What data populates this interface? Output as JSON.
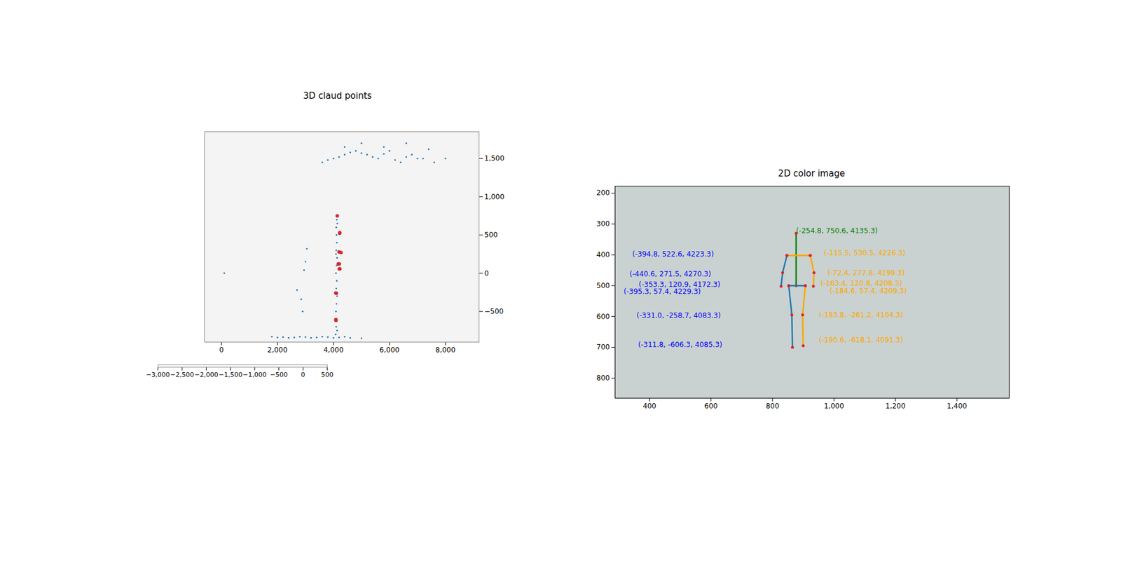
{
  "chart_data": [
    {
      "type": "scatter3d",
      "title": "3D claud points",
      "grid": true,
      "xlim": [
        -600,
        9200
      ],
      "xticks": [
        0,
        2000,
        4000,
        6000,
        8000
      ],
      "ylim": [
        -900,
        1850
      ],
      "yticks": [
        -500,
        0,
        500,
        1000,
        1500
      ],
      "x2lim": [
        -3000,
        500
      ],
      "x2ticks": [
        -3000,
        -2500,
        -2000,
        -1500,
        -1000,
        -500,
        0,
        500
      ],
      "series": [
        {
          "color": "#1f77b4",
          "marker": "point",
          "x": [
            4080,
            4100,
            4120,
            4090,
            4110,
            4130,
            4100,
            4120,
            4090,
            4110,
            4130,
            4100,
            4120,
            4110,
            4100,
            4120,
            4130,
            4110,
            4090,
            4140,
            1800,
            2000,
            2200,
            2400,
            2600,
            2800,
            3000,
            3200,
            3400,
            3600,
            3800,
            4000,
            4200,
            4400,
            4600,
            5000,
            3600,
            3800,
            4000,
            4200,
            4400,
            4600,
            4800,
            5000,
            5200,
            5400,
            5600,
            5800,
            6000,
            6200,
            6400,
            6600,
            6800,
            7000,
            7200,
            7600,
            8000,
            4400,
            5000,
            5800,
            6600,
            7400,
            3050,
            3000,
            2950,
            2850,
            2700,
            2900,
            100
          ],
          "values": [
            -800,
            -700,
            -600,
            -500,
            -400,
            -300,
            -200,
            -100,
            0,
            100,
            200,
            300,
            400,
            500,
            600,
            700,
            -750,
            -250,
            250,
            650,
            -830,
            -840,
            -835,
            -845,
            -840,
            -830,
            -835,
            -845,
            -840,
            -830,
            -835,
            -845,
            -840,
            -830,
            -845,
            -850,
            1450,
            1480,
            1500,
            1520,
            1550,
            1580,
            1600,
            1570,
            1550,
            1520,
            1500,
            1560,
            1600,
            1480,
            1450,
            1520,
            1550,
            1500,
            1500,
            1450,
            1500,
            1650,
            1700,
            1650,
            1700,
            1620,
            320,
            150,
            40,
            -340,
            -220,
            -500,
            0
          ]
        },
        {
          "color": "#d62728",
          "marker": "circle",
          "x": [
            4135.3,
            4223.3,
            4270.3,
            4172.3,
            4229.3,
            4083.3,
            4085.3,
            4226.3,
            4199.3,
            4208.3,
            4209.3,
            4104.3,
            4091.3
          ],
          "values": [
            750.6,
            522.6,
            271.5,
            120.9,
            57.4,
            -258.7,
            -606.3,
            530.5,
            277.8,
            120.8,
            57.4,
            -261.2,
            -618.1
          ]
        }
      ]
    },
    {
      "type": "image",
      "title": "2D color image",
      "grid": false,
      "xlim": [
        288,
        1570
      ],
      "xticks": [
        400,
        600,
        800,
        1000,
        1200,
        1400
      ],
      "ylim": [
        865,
        177
      ],
      "yticks": [
        200,
        300,
        400,
        500,
        600,
        700,
        800
      ],
      "series": [
        {
          "color": "green",
          "x": [
            877,
            877
          ],
          "values": [
            330,
            500
          ]
        },
        {
          "color": "orange",
          "x": [
            847,
            923
          ],
          "values": [
            402,
            402
          ]
        },
        {
          "color": "orange",
          "x": [
            923,
            935,
            933
          ],
          "values": [
            402,
            458,
            502
          ]
        },
        {
          "color": "orange",
          "x": [
            907,
            898,
            900
          ],
          "values": [
            500,
            595,
            695
          ]
        },
        {
          "color": "#1f77b4",
          "x": [
            847,
            833,
            828
          ],
          "values": [
            402,
            458,
            502
          ]
        },
        {
          "color": "#1f77b4",
          "x": [
            853,
            863,
            865
          ],
          "values": [
            500,
            595,
            700
          ]
        },
        {
          "color": "#1f77b4",
          "x": [
            853,
            907
          ],
          "values": [
            500,
            500
          ]
        }
      ],
      "annotations": [
        {
          "text": "(-254.8, 750.6, 4135.3)",
          "x": 877,
          "y": 323,
          "color": "green"
        },
        {
          "text": "(-394.8, 522.6, 4223.3)",
          "x": 344,
          "y": 398,
          "color": "blue"
        },
        {
          "text": "(-440.6, 271.5, 4270.3)",
          "x": 335,
          "y": 463,
          "color": "blue"
        },
        {
          "text": "(-353.3, 120.9, 4172.3)",
          "x": 365,
          "y": 497,
          "color": "blue"
        },
        {
          "text": "(-395.3, 57.4, 4229.3)",
          "x": 316,
          "y": 520,
          "color": "blue"
        },
        {
          "text": "(-331.0, -258.7, 4083.3)",
          "x": 358,
          "y": 598,
          "color": "blue"
        },
        {
          "text": "(-311.8, -606.3, 4085.3)",
          "x": 363,
          "y": 691,
          "color": "blue"
        },
        {
          "text": "(-115.5, 530.5, 4226.3)",
          "x": 967,
          "y": 395,
          "color": "orange"
        },
        {
          "text": "(-72.4, 277.8, 4199.3)",
          "x": 979,
          "y": 458,
          "color": "orange"
        },
        {
          "text": "(-163.4, 120.8, 4208.3)",
          "x": 956,
          "y": 492,
          "color": "orange"
        },
        {
          "text": "(-184.6, 57.4, 4209.3)",
          "x": 986,
          "y": 517,
          "color": "orange"
        },
        {
          "text": "(-183.8, -261.2, 4104.3)",
          "x": 951,
          "y": 595,
          "color": "orange"
        },
        {
          "text": "(-190.6, -618.1, 4091.3)",
          "x": 951,
          "y": 677,
          "color": "orange"
        }
      ]
    }
  ]
}
